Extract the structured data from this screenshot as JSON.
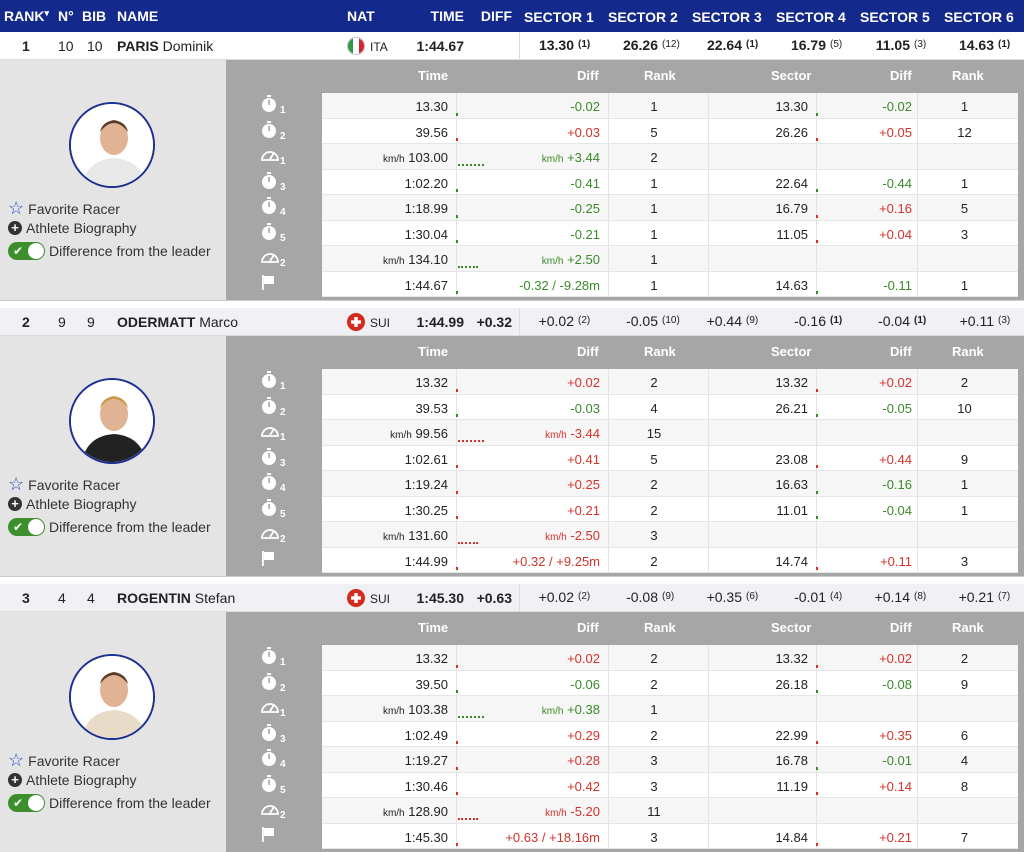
{
  "header": {
    "rank": "RANK",
    "sort_arrow": "▾",
    "no": "N°",
    "bib": "BIB",
    "name": "NAME",
    "nat": "NAT",
    "time": "TIME",
    "diff": "DIFF",
    "sectors": [
      "SECTOR 1",
      "SECTOR 2",
      "SECTOR 3",
      "SECTOR 4",
      "SECTOR 5",
      "SECTOR 6"
    ]
  },
  "detail_headers": {
    "time": "Time",
    "diff": "Diff",
    "rank": "Rank",
    "sector": "Sector",
    "sdiff": "Diff",
    "srank": "Rank"
  },
  "options": {
    "favorite": "Favorite Racer",
    "bio": "Athlete Biography",
    "diff_leader": "Difference from the leader",
    "toggle_check": "✔"
  },
  "colors": {
    "header": "#14298c",
    "positive": "#d4332b",
    "negative": "#3a8a2a",
    "toggle": "#3d8f2e"
  },
  "racers": [
    {
      "rank": "1",
      "no": "10",
      "bib": "10",
      "last": "PARIS",
      "first": "Dominik",
      "nat": "ITA",
      "flag": "italy",
      "time": "1:44.67",
      "diff": "",
      "sectors": [
        {
          "v": "13.30",
          "r": "(1)",
          "b": true
        },
        {
          "v": "26.26",
          "r": "(12)",
          "b": false
        },
        {
          "v": "22.64",
          "r": "(1)",
          "b": true
        },
        {
          "v": "16.79",
          "r": "(5)",
          "b": false
        },
        {
          "v": "11.05",
          "r": "(3)",
          "b": false
        },
        {
          "v": "14.63",
          "r": "(1)",
          "b": true
        }
      ],
      "sectors_bold": true,
      "splits": [
        {
          "icon": "stopwatch",
          "sub": "1",
          "time": "13.30",
          "diff": "-0.02",
          "dc": "g",
          "rank": "1",
          "sector": "13.30",
          "sdiff": "-0.02",
          "sc": "g",
          "srank": "1"
        },
        {
          "icon": "stopwatch",
          "sub": "2",
          "time": "39.56",
          "diff": "+0.03",
          "dc": "rd",
          "rank": "5",
          "sector": "26.26",
          "sdiff": "+0.05",
          "sc": "rd",
          "srank": "12"
        },
        {
          "icon": "speed",
          "sub": "1",
          "unit": "km/h",
          "time": "103.00",
          "dunit": "km/h",
          "diff": "+3.44",
          "dc": "g",
          "rank": "2"
        },
        {
          "icon": "stopwatch",
          "sub": "3",
          "time": "1:02.20",
          "diff": "-0.41",
          "dc": "g",
          "rank": "1",
          "sector": "22.64",
          "sdiff": "-0.44",
          "sc": "g",
          "srank": "1"
        },
        {
          "icon": "stopwatch",
          "sub": "4",
          "time": "1:18.99",
          "diff": "-0.25",
          "dc": "g",
          "rank": "1",
          "sector": "16.79",
          "sdiff": "+0.16",
          "sc": "rd",
          "srank": "5"
        },
        {
          "icon": "stopwatch",
          "sub": "5",
          "time": "1:30.04",
          "diff": "-0.21",
          "dc": "g",
          "rank": "1",
          "sector": "11.05",
          "sdiff": "+0.04",
          "sc": "rd",
          "srank": "3"
        },
        {
          "icon": "speed",
          "sub": "2",
          "unit": "km/h",
          "time": "134.10",
          "dunit": "km/h",
          "diff": "+2.50",
          "dc": "g",
          "rank": "1"
        },
        {
          "icon": "flag",
          "sub": "",
          "time": "1:44.67",
          "diff": "-0.32 / -9.28m",
          "dc": "g",
          "rank": "1",
          "sector": "14.63",
          "sdiff": "-0.11",
          "sc": "g",
          "srank": "1"
        }
      ]
    },
    {
      "rank": "2",
      "no": "9",
      "bib": "9",
      "last": "ODERMATT",
      "first": "Marco",
      "nat": "SUI",
      "flag": "switzerland",
      "time": "1:44.99",
      "diff": "+0.32",
      "sectors": [
        {
          "v": "+0.02",
          "r": "(2)",
          "b": false
        },
        {
          "v": "-0.05",
          "r": "(10)",
          "b": false
        },
        {
          "v": "+0.44",
          "r": "(9)",
          "b": false
        },
        {
          "v": "-0.16",
          "r": "(1)",
          "b": true
        },
        {
          "v": "-0.04",
          "r": "(1)",
          "b": true
        },
        {
          "v": "+0.11",
          "r": "(3)",
          "b": false
        }
      ],
      "splits": [
        {
          "icon": "stopwatch",
          "sub": "1",
          "time": "13.32",
          "diff": "+0.02",
          "dc": "rd",
          "rank": "2",
          "sector": "13.32",
          "sdiff": "+0.02",
          "sc": "rd",
          "srank": "2"
        },
        {
          "icon": "stopwatch",
          "sub": "2",
          "time": "39.53",
          "diff": "-0.03",
          "dc": "g",
          "rank": "4",
          "sector": "26.21",
          "sdiff": "-0.05",
          "sc": "g",
          "srank": "10"
        },
        {
          "icon": "speed",
          "sub": "1",
          "unit": "km/h",
          "time": "99.56",
          "dunit": "km/h",
          "diff": "-3.44",
          "dc": "rd",
          "rank": "15"
        },
        {
          "icon": "stopwatch",
          "sub": "3",
          "time": "1:02.61",
          "diff": "+0.41",
          "dc": "rd",
          "rank": "5",
          "sector": "23.08",
          "sdiff": "+0.44",
          "sc": "rd",
          "srank": "9"
        },
        {
          "icon": "stopwatch",
          "sub": "4",
          "time": "1:19.24",
          "diff": "+0.25",
          "dc": "rd",
          "rank": "2",
          "sector": "16.63",
          "sdiff": "-0.16",
          "sc": "g",
          "srank": "1"
        },
        {
          "icon": "stopwatch",
          "sub": "5",
          "time": "1:30.25",
          "diff": "+0.21",
          "dc": "rd",
          "rank": "2",
          "sector": "11.01",
          "sdiff": "-0.04",
          "sc": "g",
          "srank": "1"
        },
        {
          "icon": "speed",
          "sub": "2",
          "unit": "km/h",
          "time": "131.60",
          "dunit": "km/h",
          "diff": "-2.50",
          "dc": "rd",
          "rank": "3"
        },
        {
          "icon": "flag",
          "sub": "",
          "time": "1:44.99",
          "diff": "+0.32 / +9.25m",
          "dc": "rd",
          "rank": "2",
          "sector": "14.74",
          "sdiff": "+0.11",
          "sc": "rd",
          "srank": "3"
        }
      ]
    },
    {
      "rank": "3",
      "no": "4",
      "bib": "4",
      "last": "ROGENTIN",
      "first": "Stefan",
      "nat": "SUI",
      "flag": "switzerland",
      "time": "1:45.30",
      "diff": "+0.63",
      "sectors": [
        {
          "v": "+0.02",
          "r": "(2)",
          "b": false
        },
        {
          "v": "-0.08",
          "r": "(9)",
          "b": false
        },
        {
          "v": "+0.35",
          "r": "(6)",
          "b": false
        },
        {
          "v": "-0.01",
          "r": "(4)",
          "b": false
        },
        {
          "v": "+0.14",
          "r": "(8)",
          "b": false
        },
        {
          "v": "+0.21",
          "r": "(7)",
          "b": false
        }
      ],
      "splits": [
        {
          "icon": "stopwatch",
          "sub": "1",
          "time": "13.32",
          "diff": "+0.02",
          "dc": "rd",
          "rank": "2",
          "sector": "13.32",
          "sdiff": "+0.02",
          "sc": "rd",
          "srank": "2"
        },
        {
          "icon": "stopwatch",
          "sub": "2",
          "time": "39.50",
          "diff": "-0.06",
          "dc": "g",
          "rank": "2",
          "sector": "26.18",
          "sdiff": "-0.08",
          "sc": "g",
          "srank": "9"
        },
        {
          "icon": "speed",
          "sub": "1",
          "unit": "km/h",
          "time": "103.38",
          "dunit": "km/h",
          "diff": "+0.38",
          "dc": "g",
          "rank": "1"
        },
        {
          "icon": "stopwatch",
          "sub": "3",
          "time": "1:02.49",
          "diff": "+0.29",
          "dc": "rd",
          "rank": "2",
          "sector": "22.99",
          "sdiff": "+0.35",
          "sc": "rd",
          "srank": "6"
        },
        {
          "icon": "stopwatch",
          "sub": "4",
          "time": "1:19.27",
          "diff": "+0.28",
          "dc": "rd",
          "rank": "3",
          "sector": "16.78",
          "sdiff": "-0.01",
          "sc": "g",
          "srank": "4"
        },
        {
          "icon": "stopwatch",
          "sub": "5",
          "time": "1:30.46",
          "diff": "+0.42",
          "dc": "rd",
          "rank": "3",
          "sector": "11.19",
          "sdiff": "+0.14",
          "sc": "rd",
          "srank": "8"
        },
        {
          "icon": "speed",
          "sub": "2",
          "unit": "km/h",
          "time": "128.90",
          "dunit": "km/h",
          "diff": "-5.20",
          "dc": "rd",
          "rank": "11"
        },
        {
          "icon": "flag",
          "sub": "",
          "time": "1:45.30",
          "diff": "+0.63 / +18.16m",
          "dc": "rd",
          "rank": "3",
          "sector": "14.84",
          "sdiff": "+0.21",
          "sc": "rd",
          "srank": "7"
        }
      ]
    }
  ]
}
